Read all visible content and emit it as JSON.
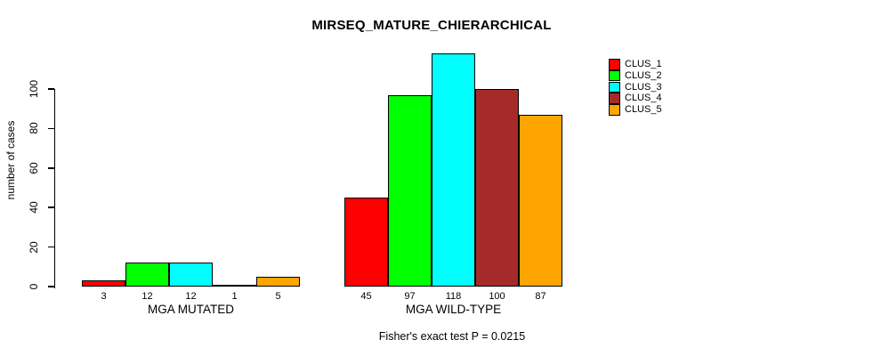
{
  "chart_data": {
    "type": "bar",
    "title": "MIRSEQ_MATURE_CHIERARCHICAL",
    "ylabel": "number of cases",
    "xlabel": "",
    "ylim": [
      0,
      120
    ],
    "yticks": [
      0,
      20,
      40,
      60,
      80,
      100
    ],
    "grid": false,
    "legend_position": "right",
    "categories": [
      "MGA MUTATED",
      "MGA WILD-TYPE"
    ],
    "series": [
      {
        "name": "CLUS_1",
        "color": "#FF0000",
        "values": [
          3,
          45
        ]
      },
      {
        "name": "CLUS_2",
        "color": "#00FF00",
        "values": [
          12,
          97
        ]
      },
      {
        "name": "CLUS_3",
        "color": "#00FFFF",
        "values": [
          12,
          118
        ]
      },
      {
        "name": "CLUS_4",
        "color": "#A52A2A",
        "values": [
          1,
          100
        ]
      },
      {
        "name": "CLUS_5",
        "color": "#FFA500",
        "values": [
          5,
          87
        ]
      }
    ],
    "bar_value_labels": [
      [
        3,
        12,
        12,
        1,
        5
      ],
      [
        45,
        97,
        118,
        100,
        87
      ]
    ],
    "annotation": "Fisher's exact test P = 0.0215",
    "bar_outline_color": "#000000",
    "axis_color": "#000000",
    "background": "#FFFFFF"
  }
}
